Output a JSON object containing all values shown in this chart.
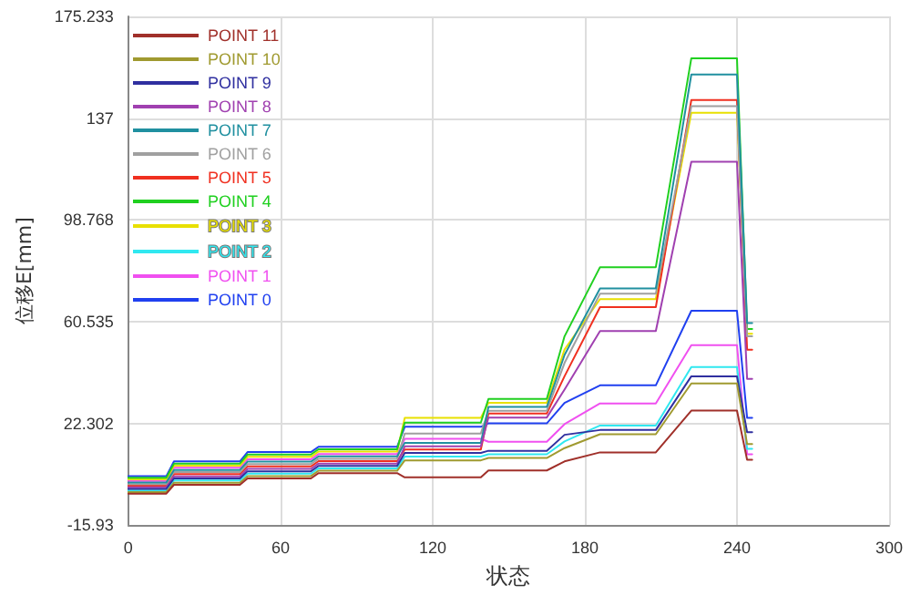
{
  "chart_data": {
    "type": "line",
    "xlabel": "状态",
    "ylabel": "位移E[mm]",
    "xlim": [
      0,
      300
    ],
    "xticks": [
      0,
      60,
      120,
      180,
      240,
      300
    ],
    "ylim": [
      -15.93,
      175.233
    ],
    "yticks": [
      -15.93,
      22.302,
      60.535,
      98.768,
      137.0,
      175.233
    ],
    "grid": true,
    "legend": "top left",
    "marker": "none",
    "line_style": "solid",
    "x": [
      0,
      15,
      18,
      44,
      47,
      72,
      75,
      106,
      109,
      139,
      142,
      165,
      172,
      186,
      208,
      222,
      240,
      244,
      246
    ],
    "series": [
      {
        "name": "POINT 0",
        "color": "#2040f0",
        "values": [
          2.5,
          2.5,
          8,
          8,
          11.5,
          11.5,
          13.5,
          13.5,
          21,
          21,
          22.3,
          22.3,
          30,
          36.6,
          36.6,
          64.6,
          64.6,
          24.4,
          24.4
        ]
      },
      {
        "name": "POINT 1",
        "color": "#f050f0",
        "values": [
          0.7,
          0.7,
          5.6,
          5.6,
          8.8,
          8.8,
          10.8,
          10.8,
          16.5,
          16.5,
          15.4,
          15.4,
          22,
          29.8,
          29.8,
          51.7,
          51.7,
          10.7,
          10.7
        ]
      },
      {
        "name": "POINT 2",
        "color": "#30e8f0",
        "values": [
          -2.9,
          -2.9,
          0.8,
          0.8,
          3.4,
          3.4,
          5.4,
          5.4,
          9.8,
          9.8,
          10.7,
          10.7,
          15.5,
          21.5,
          21.5,
          43.5,
          43.5,
          12.7,
          12.7
        ]
      },
      {
        "name": "POINT 3",
        "color": "#e8e000",
        "values": [
          1.3,
          1.3,
          6.4,
          6.4,
          9.7,
          9.7,
          11.7,
          11.7,
          24.4,
          24.4,
          30,
          30,
          50,
          69,
          69,
          139,
          139,
          56,
          56
        ]
      },
      {
        "name": "POINT 4",
        "color": "#20d020",
        "values": [
          1.9,
          1.9,
          7.2,
          7.2,
          10.6,
          10.6,
          12.6,
          12.6,
          22.6,
          22.6,
          31.5,
          31.5,
          55,
          81,
          81,
          159.5,
          159.5,
          57.8,
          57.8
        ]
      },
      {
        "name": "POINT 5",
        "color": "#f03020",
        "values": [
          -1.1,
          -1.1,
          3.2,
          3.2,
          6.1,
          6.1,
          8.1,
          8.1,
          12.5,
          12.5,
          26,
          26,
          40,
          66,
          66,
          143.8,
          143.8,
          50,
          50
        ]
      },
      {
        "name": "POINT 6",
        "color": "#a0a0a0",
        "values": [
          -0.5,
          -0.5,
          4,
          4,
          7,
          7,
          9,
          9,
          18.5,
          18.5,
          27,
          27,
          45,
          71,
          71,
          141.5,
          141.5,
          55,
          55
        ]
      },
      {
        "name": "POINT 7",
        "color": "#2090a0",
        "values": [
          0.1,
          0.1,
          4.8,
          4.8,
          7.9,
          7.9,
          9.9,
          9.9,
          15,
          15,
          28.5,
          28.5,
          48,
          73,
          73,
          153.4,
          153.4,
          60,
          60
        ]
      },
      {
        "name": "POINT 8",
        "color": "#a040b0",
        "values": [
          -1.7,
          -1.7,
          2.4,
          2.4,
          5.2,
          5.2,
          7.2,
          7.2,
          13.7,
          13.7,
          24.5,
          24.5,
          35,
          57,
          57,
          120.6,
          120.6,
          39,
          39
        ]
      },
      {
        "name": "POINT 9",
        "color": "#3030a0",
        "values": [
          -2.3,
          -2.3,
          1.6,
          1.6,
          4.3,
          4.3,
          6.3,
          6.3,
          11.2,
          11.2,
          12,
          12,
          18,
          19.8,
          19.8,
          40,
          40,
          19,
          19
        ]
      },
      {
        "name": "POINT 10",
        "color": "#a09a30",
        "values": [
          -3.5,
          -3.5,
          0,
          0,
          2.5,
          2.5,
          4.5,
          4.5,
          8.4,
          8.4,
          9.3,
          9.3,
          13,
          18.2,
          18.2,
          37.3,
          37.3,
          14.5,
          14.5
        ]
      },
      {
        "name": "POINT 11",
        "color": "#a0302a",
        "values": [
          -4.1,
          -4.1,
          -0.8,
          -0.8,
          1.6,
          1.6,
          3.6,
          3.6,
          2,
          2,
          4.6,
          4.6,
          8,
          11.4,
          11.4,
          27.1,
          27.1,
          8.6,
          8.6
        ]
      }
    ]
  }
}
